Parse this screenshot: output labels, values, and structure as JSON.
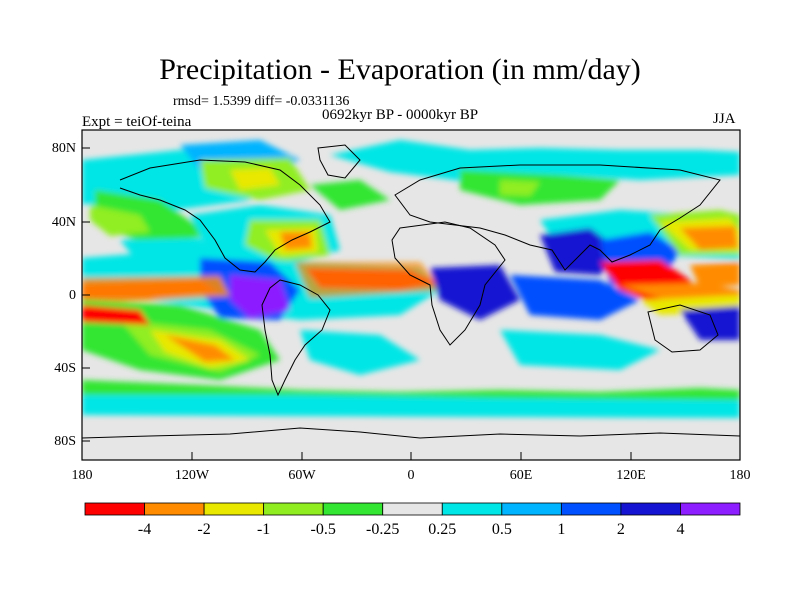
{
  "plot": {
    "title": "Precipitation - Evaporation (in mm/day)",
    "stats": "rmsd= 1.5399 diff= -0.0331136",
    "experiment": "Expt = teiOf-teina",
    "period": "0692kyr BP - 0000kyr BP",
    "season": "JJA"
  },
  "axes": {
    "y_ticks": [
      "80N",
      "40N",
      "0",
      "40S",
      "80S"
    ],
    "x_ticks": [
      "180",
      "120W",
      "60W",
      "0",
      "60E",
      "120E",
      "180"
    ]
  },
  "colorbar": {
    "colors": [
      "#ff0000",
      "#ff8c00",
      "#e8e800",
      "#90ee20",
      "#32e632",
      "#e6e6e6",
      "#00e6e6",
      "#00b4ff",
      "#0050ff",
      "#1414d2",
      "#8c1eff"
    ],
    "labels": [
      "-4",
      "-2",
      "-1",
      "-0.5",
      "-0.25",
      "0.25",
      "0.5",
      "1",
      "2",
      "4"
    ]
  }
}
